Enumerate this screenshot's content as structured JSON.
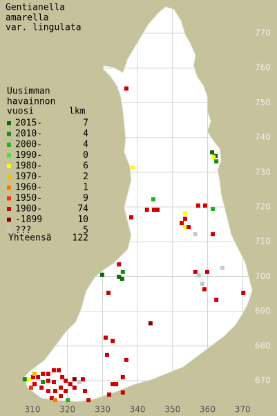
{
  "title": [
    "Gentianella",
    "amarella",
    "var. lingulata"
  ],
  "legend": {
    "heading": [
      "Uusimman",
      "havainnon"
    ],
    "period_header": "vuosi",
    "count_header": "lkm",
    "entries": [
      {
        "label": "2015-",
        "count": 7,
        "color": "#0d6b0d"
      },
      {
        "label": "2010-",
        "count": 4,
        "color": "#168c16"
      },
      {
        "label": "2000-",
        "count": 4,
        "color": "#20b020"
      },
      {
        "label": "1990-",
        "count": 0,
        "color": "#40e040"
      },
      {
        "label": "1980-",
        "count": 6,
        "color": "#ffff00"
      },
      {
        "label": "1970-",
        "count": 2,
        "color": "#f0c000"
      },
      {
        "label": "1960-",
        "count": 1,
        "color": "#ff7800"
      },
      {
        "label": "1950-",
        "count": 9,
        "color": "#ff3000"
      },
      {
        "label": "1900-",
        "count": 74,
        "color": "#cc0000"
      },
      {
        "label": "-1899",
        "count": 10,
        "color": "#880000"
      },
      {
        "label": "???",
        "count": 5,
        "color": "#c8c8c8"
      }
    ],
    "total_label": "Yhteensä",
    "total": 122
  },
  "y_labels": [
    770,
    760,
    750,
    740,
    730,
    720,
    710,
    700,
    690,
    680,
    670
  ],
  "x_labels": [
    310,
    320,
    330,
    340,
    350,
    360,
    370
  ],
  "squares": {
    "x": [
      336.8,
      361.3,
      362.3,
      361.7,
      362.5,
      338.6,
      344.5,
      342.7,
      344.7,
      345.7,
      338.2,
      353.6,
      353.6,
      353.6,
      354.6,
      352.6,
      357.3,
      359.3,
      361.5,
      356.5,
      361.5,
      329.9,
      334.7,
      335.8,
      334.7,
      335.6,
      356.5,
      357.5,
      359.9,
      364.2,
      358.5,
      359.1,
      362.5,
      370.2,
      331.7,
      343.7,
      330.9,
      332.9,
      331.3,
      336.8,
      335.8,
      332.9,
      333.9,
      335.8,
      331.9,
      307.8,
      309.0,
      310.2,
      311.6,
      313.0,
      314.5,
      316.1,
      317.5,
      318.5,
      319.5,
      314.5,
      316.1,
      310.6,
      312.6,
      314.5,
      316.5,
      318.1,
      319.5,
      320.8,
      322.0,
      313.0,
      315.5,
      316.5,
      320.1,
      318.1,
      323.4,
      324.4,
      325.0,
      326.0,
      322.0,
      310.6,
      309.6
    ],
    "y": [
      754.1,
      735.7,
      734.7,
      734.3,
      733.1,
      731.4,
      722.2,
      719.2,
      719.2,
      719.2,
      717.0,
      718.2,
      716.6,
      714.2,
      714.2,
      715.4,
      720.4,
      720.4,
      719.4,
      712.2,
      712.2,
      700.5,
      703.5,
      701.3,
      699.9,
      699.3,
      701.3,
      700.3,
      701.3,
      702.5,
      697.9,
      696.3,
      693.3,
      695.3,
      695.3,
      686.5,
      682.4,
      681.4,
      677.4,
      676.0,
      671.0,
      669.0,
      669.0,
      666.6,
      666.0,
      670.4,
      670.4,
      671.0,
      671.0,
      672.0,
      672.0,
      673.0,
      673.0,
      671.0,
      670.0,
      670.0,
      669.6,
      669.0,
      668.0,
      667.0,
      667.0,
      668.0,
      667.0,
      669.0,
      668.0,
      669.6,
      665.0,
      664.4,
      664.4,
      665.6,
      669.6,
      670.4,
      667.0,
      664.4,
      670.4,
      672.0,
      668.0
    ],
    "period": [
      8,
      0,
      0,
      4,
      1,
      4,
      2,
      8,
      8,
      8,
      8,
      4,
      8,
      4,
      8,
      8,
      8,
      8,
      2,
      10,
      8,
      0,
      8,
      1,
      0,
      0,
      8,
      10,
      8,
      10,
      10,
      8,
      8,
      8,
      8,
      9,
      8,
      8,
      8,
      8,
      8,
      8,
      8,
      8,
      8,
      1,
      4,
      8,
      8,
      8,
      8,
      8,
      8,
      8,
      8,
      8,
      8,
      8,
      8,
      8,
      8,
      8,
      8,
      8,
      8,
      1,
      8,
      6,
      2,
      8,
      10,
      8,
      8,
      8,
      9,
      5,
      7
    ]
  }
}
